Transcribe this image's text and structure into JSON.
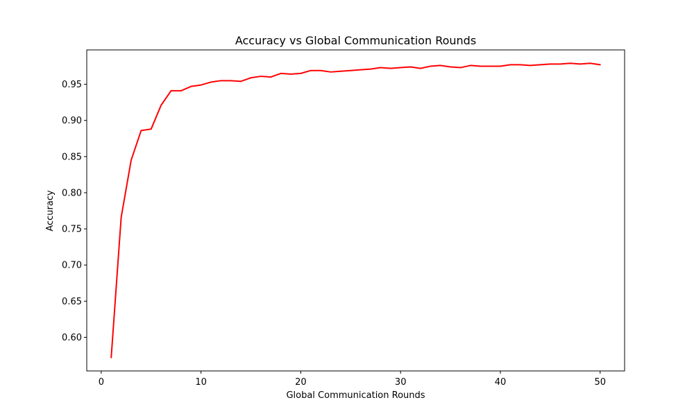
{
  "chart_data": {
    "type": "line",
    "title": "Accuracy vs Global Communication Rounds",
    "xlabel": "Global Communication Rounds",
    "ylabel": "Accuracy",
    "xlim": [
      -1.45,
      52.45
    ],
    "ylim": [
      0.5535,
      0.9975
    ],
    "xticks": [
      0,
      10,
      20,
      30,
      40,
      50
    ],
    "yticks": [
      0.6,
      0.65,
      0.7,
      0.75,
      0.8,
      0.85,
      0.9,
      0.95
    ],
    "grid": false,
    "x": [
      1,
      2,
      3,
      4,
      5,
      6,
      7,
      8,
      9,
      10,
      11,
      12,
      13,
      14,
      15,
      16,
      17,
      18,
      19,
      20,
      21,
      22,
      23,
      24,
      25,
      26,
      27,
      28,
      29,
      30,
      31,
      32,
      33,
      34,
      35,
      36,
      37,
      38,
      39,
      40,
      41,
      42,
      43,
      44,
      45,
      46,
      47,
      48,
      49,
      50
    ],
    "series": [
      {
        "color": "#ff0000",
        "values": [
          0.572,
          0.766,
          0.845,
          0.886,
          0.888,
          0.921,
          0.941,
          0.941,
          0.947,
          0.949,
          0.953,
          0.955,
          0.955,
          0.954,
          0.959,
          0.961,
          0.96,
          0.965,
          0.964,
          0.965,
          0.969,
          0.969,
          0.967,
          0.968,
          0.969,
          0.97,
          0.971,
          0.973,
          0.972,
          0.973,
          0.974,
          0.972,
          0.975,
          0.976,
          0.974,
          0.973,
          0.976,
          0.975,
          0.975,
          0.975,
          0.977,
          0.977,
          0.976,
          0.977,
          0.978,
          0.978,
          0.979,
          0.978,
          0.979,
          0.977
        ]
      }
    ]
  }
}
